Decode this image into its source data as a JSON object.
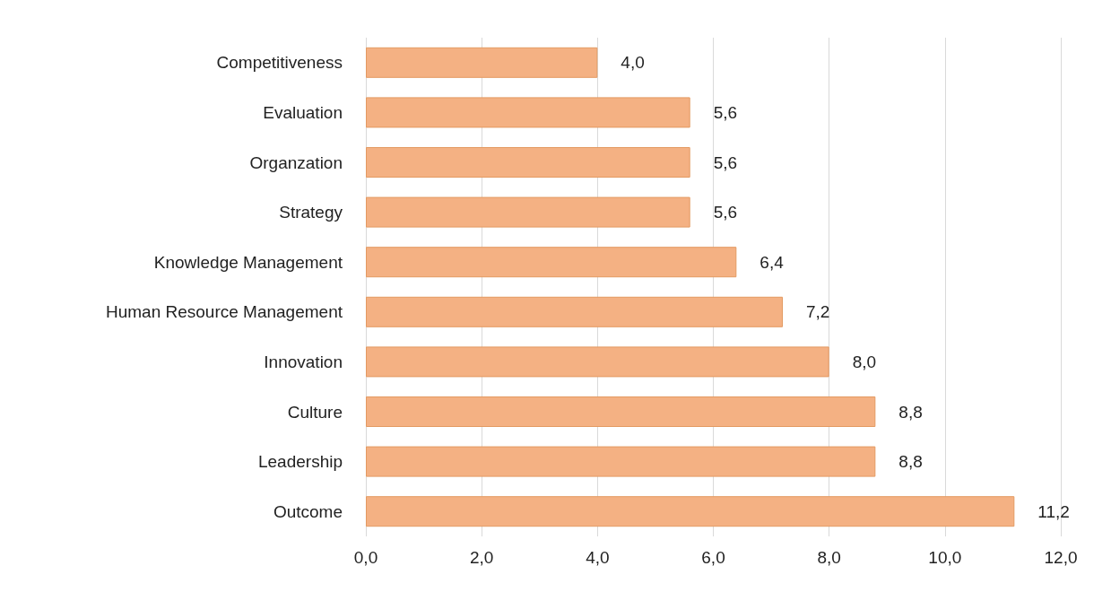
{
  "chart_data": {
    "type": "bar",
    "orientation": "horizontal",
    "categories": [
      "Competitiveness",
      "Evaluation",
      "Organzation",
      "Strategy",
      "Knowledge Management",
      "Human Resource Management",
      "Innovation",
      "Culture",
      "Leadership",
      "Outcome"
    ],
    "values": [
      4.0,
      5.6,
      5.6,
      5.6,
      6.4,
      7.2,
      8.0,
      8.8,
      8.8,
      11.2
    ],
    "value_labels": [
      "4,0",
      "5,6",
      "5,6",
      "5,6",
      "6,4",
      "7,2",
      "8,0",
      "8,8",
      "8,8",
      "11,2"
    ],
    "color": "#f4b183",
    "xlim": [
      0,
      12
    ],
    "xticks": [
      {
        "value": 0,
        "label": "0,0"
      },
      {
        "value": 2,
        "label": "2,0"
      },
      {
        "value": 4,
        "label": "4,0"
      },
      {
        "value": 6,
        "label": "6,0"
      },
      {
        "value": 8,
        "label": "8,0"
      },
      {
        "value": 10,
        "label": "10,0"
      },
      {
        "value": 12,
        "label": "12,0"
      }
    ],
    "grid": "x"
  }
}
